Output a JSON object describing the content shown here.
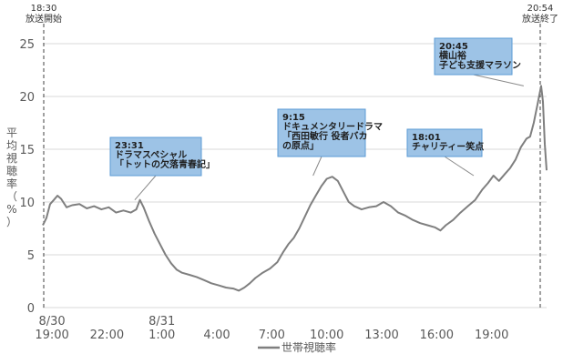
{
  "chart_data": {
    "type": "line",
    "title": "",
    "ylabel": "平均視聴率（%）",
    "xlabel": "",
    "ylim": [
      0,
      25
    ],
    "yticks": [
      0,
      5,
      10,
      15,
      20,
      25
    ],
    "grid": "horizontal",
    "legend_position": "bottom",
    "x_start": "8/30 18:30",
    "x_end": "8/31 20:54",
    "x_tick_labels": [
      {
        "top": "8/30",
        "bottom": "19:00",
        "hour": 0.5
      },
      {
        "top": "",
        "bottom": "22:00",
        "hour": 3.5
      },
      {
        "top": "8/31",
        "bottom": "1:00",
        "hour": 6.5
      },
      {
        "top": "",
        "bottom": "4:00",
        "hour": 9.5
      },
      {
        "top": "",
        "bottom": "7:00",
        "hour": 12.5
      },
      {
        "top": "",
        "bottom": "10:00",
        "hour": 15.5
      },
      {
        "top": "",
        "bottom": "13:00",
        "hour": 18.5
      },
      {
        "top": "",
        "bottom": "16:00",
        "hour": 21.5
      },
      {
        "top": "",
        "bottom": "19:00",
        "hour": 24.5
      }
    ],
    "x_unit": "hours since 8/30 18:30",
    "series": [
      {
        "name": "世帯視聴率",
        "color": "#7f7f7f",
        "points": [
          [
            0.0,
            7.8
          ],
          [
            0.2,
            8.5
          ],
          [
            0.4,
            9.8
          ],
          [
            0.6,
            10.2
          ],
          [
            0.8,
            10.6
          ],
          [
            1.0,
            10.3
          ],
          [
            1.3,
            9.5
          ],
          [
            1.6,
            9.7
          ],
          [
            2.0,
            9.8
          ],
          [
            2.4,
            9.4
          ],
          [
            2.8,
            9.6
          ],
          [
            3.2,
            9.3
          ],
          [
            3.6,
            9.5
          ],
          [
            4.0,
            9.0
          ],
          [
            4.4,
            9.2
          ],
          [
            4.8,
            9.0
          ],
          [
            5.1,
            9.3
          ],
          [
            5.3,
            10.2
          ],
          [
            5.5,
            9.5
          ],
          [
            5.8,
            8.2
          ],
          [
            6.1,
            7.0
          ],
          [
            6.4,
            6.0
          ],
          [
            6.7,
            5.0
          ],
          [
            7.0,
            4.2
          ],
          [
            7.3,
            3.6
          ],
          [
            7.6,
            3.3
          ],
          [
            8.0,
            3.1
          ],
          [
            8.4,
            2.9
          ],
          [
            8.8,
            2.6
          ],
          [
            9.2,
            2.3
          ],
          [
            9.6,
            2.1
          ],
          [
            10.0,
            1.9
          ],
          [
            10.4,
            1.8
          ],
          [
            10.7,
            1.6
          ],
          [
            11.0,
            1.9
          ],
          [
            11.3,
            2.3
          ],
          [
            11.6,
            2.8
          ],
          [
            12.0,
            3.3
          ],
          [
            12.4,
            3.7
          ],
          [
            12.8,
            4.3
          ],
          [
            13.1,
            5.2
          ],
          [
            13.4,
            6.0
          ],
          [
            13.7,
            6.6
          ],
          [
            14.0,
            7.5
          ],
          [
            14.3,
            8.6
          ],
          [
            14.6,
            9.7
          ],
          [
            14.9,
            10.6
          ],
          [
            15.2,
            11.5
          ],
          [
            15.5,
            12.2
          ],
          [
            15.8,
            12.4
          ],
          [
            16.1,
            12.0
          ],
          [
            16.4,
            11.0
          ],
          [
            16.7,
            10.0
          ],
          [
            17.0,
            9.6
          ],
          [
            17.4,
            9.3
          ],
          [
            17.8,
            9.5
          ],
          [
            18.2,
            9.6
          ],
          [
            18.6,
            10.0
          ],
          [
            19.0,
            9.6
          ],
          [
            19.4,
            9.0
          ],
          [
            19.8,
            8.7
          ],
          [
            20.2,
            8.3
          ],
          [
            20.6,
            8.0
          ],
          [
            21.0,
            7.8
          ],
          [
            21.4,
            7.6
          ],
          [
            21.7,
            7.3
          ],
          [
            22.0,
            7.8
          ],
          [
            22.4,
            8.3
          ],
          [
            22.8,
            9.0
          ],
          [
            23.2,
            9.6
          ],
          [
            23.6,
            10.2
          ],
          [
            24.0,
            11.2
          ],
          [
            24.3,
            11.8
          ],
          [
            24.6,
            12.5
          ],
          [
            24.9,
            12.0
          ],
          [
            25.2,
            12.6
          ],
          [
            25.5,
            13.2
          ],
          [
            25.8,
            14.0
          ],
          [
            26.1,
            15.2
          ],
          [
            26.4,
            16.0
          ],
          [
            26.6,
            16.2
          ],
          [
            26.8,
            17.5
          ],
          [
            27.0,
            19.2
          ],
          [
            27.2,
            21.0
          ],
          [
            27.3,
            19.5
          ],
          [
            27.4,
            15.5
          ],
          [
            27.5,
            13.0
          ]
        ]
      }
    ],
    "broadcast_markers": [
      {
        "hour": 0.0,
        "time": "18:30",
        "label": "放送開始"
      },
      {
        "hour": 26.4,
        "time": "20:54",
        "label": "放送終了"
      }
    ],
    "annotations": [
      {
        "time": "23:31",
        "lines": [
          "ドラマスペシャル",
          "「トットの欠落青春記」"
        ],
        "hour": 5.02,
        "value": 10.2
      },
      {
        "time": "9:15",
        "lines": [
          "ドキュメンタリードラマ",
          "「西田敏行 役者バカ",
          "の原点」"
        ],
        "hour": 14.75,
        "value": 12.5
      },
      {
        "time": "18:01",
        "lines": [
          "チャリティー笑点"
        ],
        "hour": 23.52,
        "value": 12.5
      },
      {
        "time": "20:45",
        "lines": [
          "横山裕",
          "子ども支援マラソン"
        ],
        "hour": 26.25,
        "value": 21.0
      }
    ],
    "legend": [
      "世帯視聴率"
    ]
  }
}
